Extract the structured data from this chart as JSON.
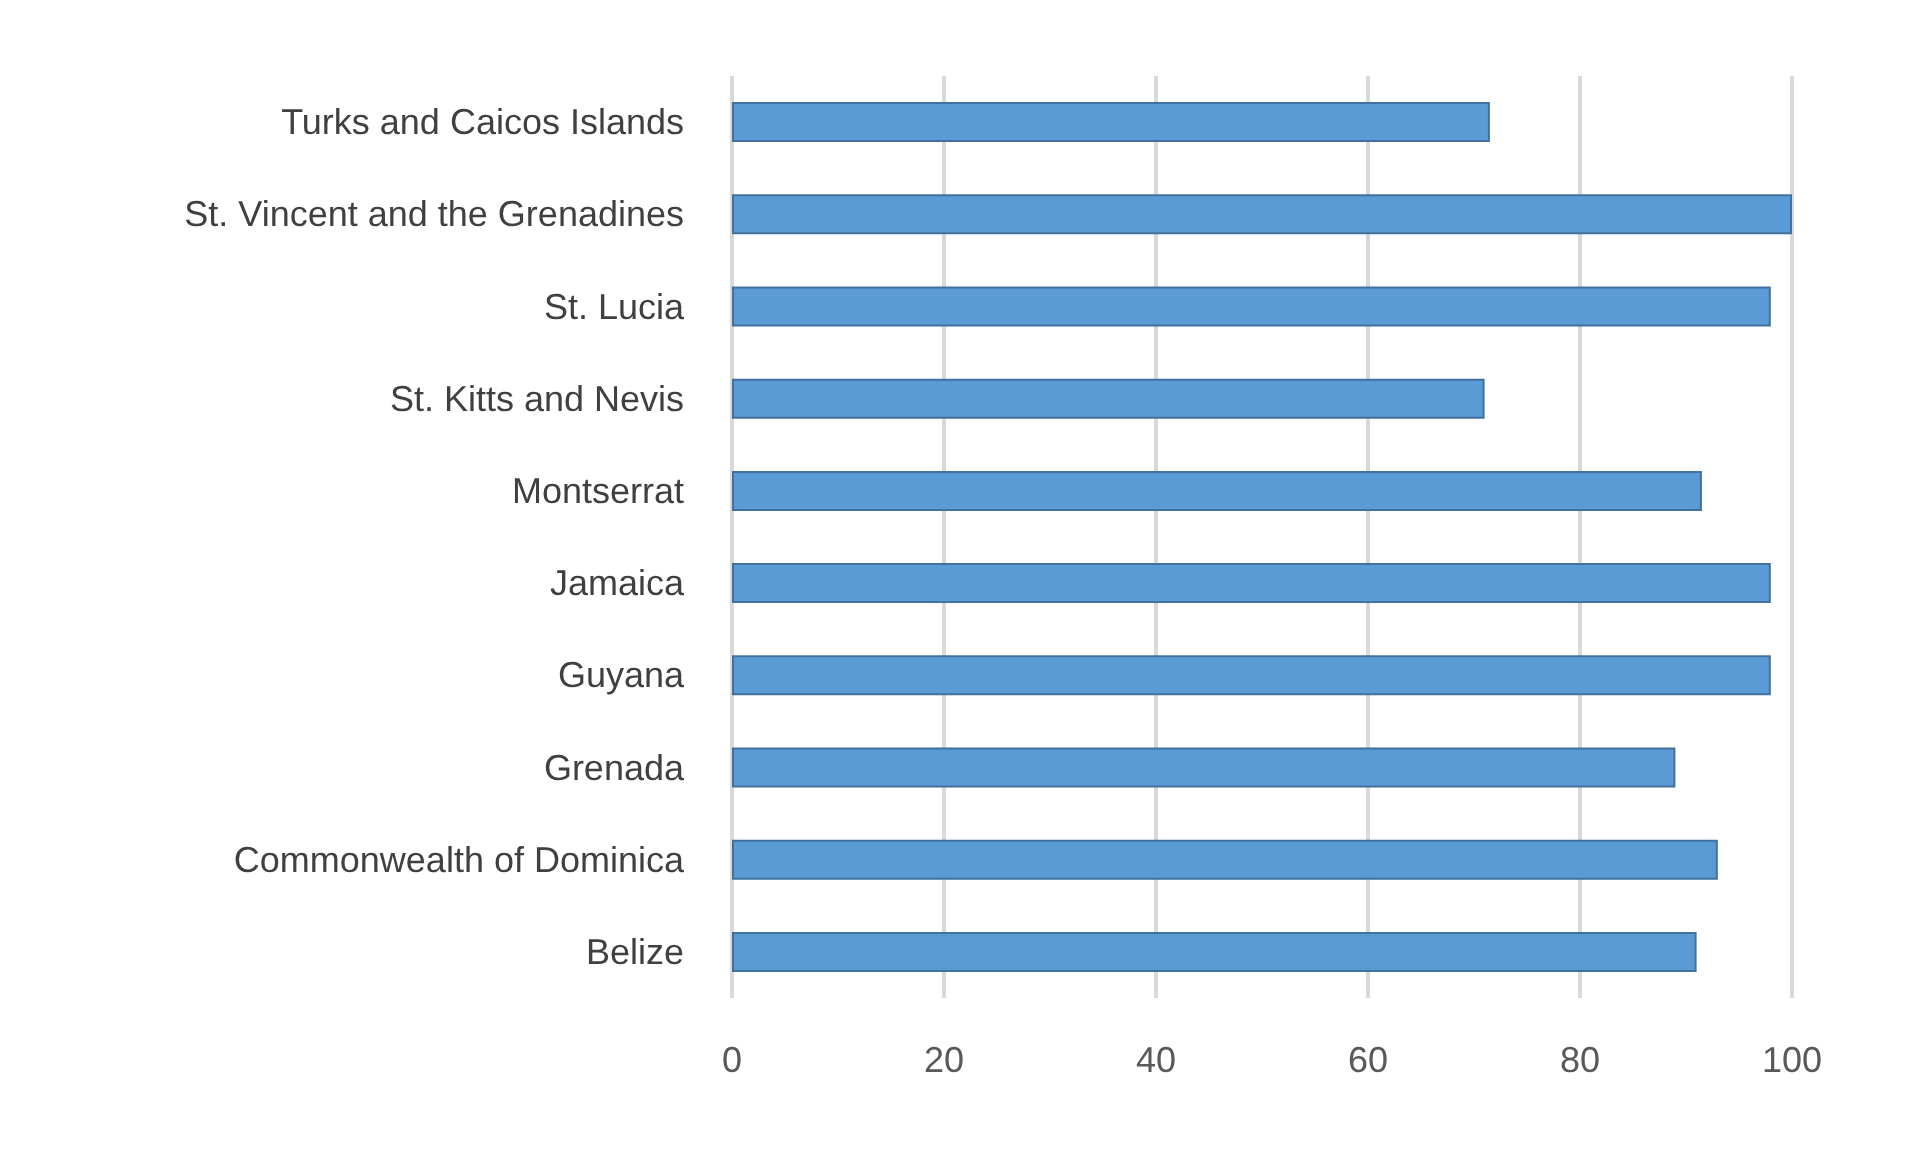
{
  "chart_data": {
    "type": "bar",
    "orientation": "horizontal",
    "categories": [
      "Turks and Caicos Islands",
      "St. Vincent and the Grenadines",
      "St. Lucia",
      "St. Kitts and Nevis",
      "Montserrat",
      "Jamaica",
      "Guyana",
      "Grenada",
      "Commonwealth of Dominica",
      "Belize"
    ],
    "values": [
      71.5,
      100,
      98,
      71,
      91.5,
      98,
      98,
      89,
      93,
      91
    ],
    "color": "#5b9bd5",
    "xlim": [
      0,
      100
    ],
    "xticks": [
      0,
      20,
      40,
      60,
      80,
      100
    ],
    "grid": "x"
  }
}
